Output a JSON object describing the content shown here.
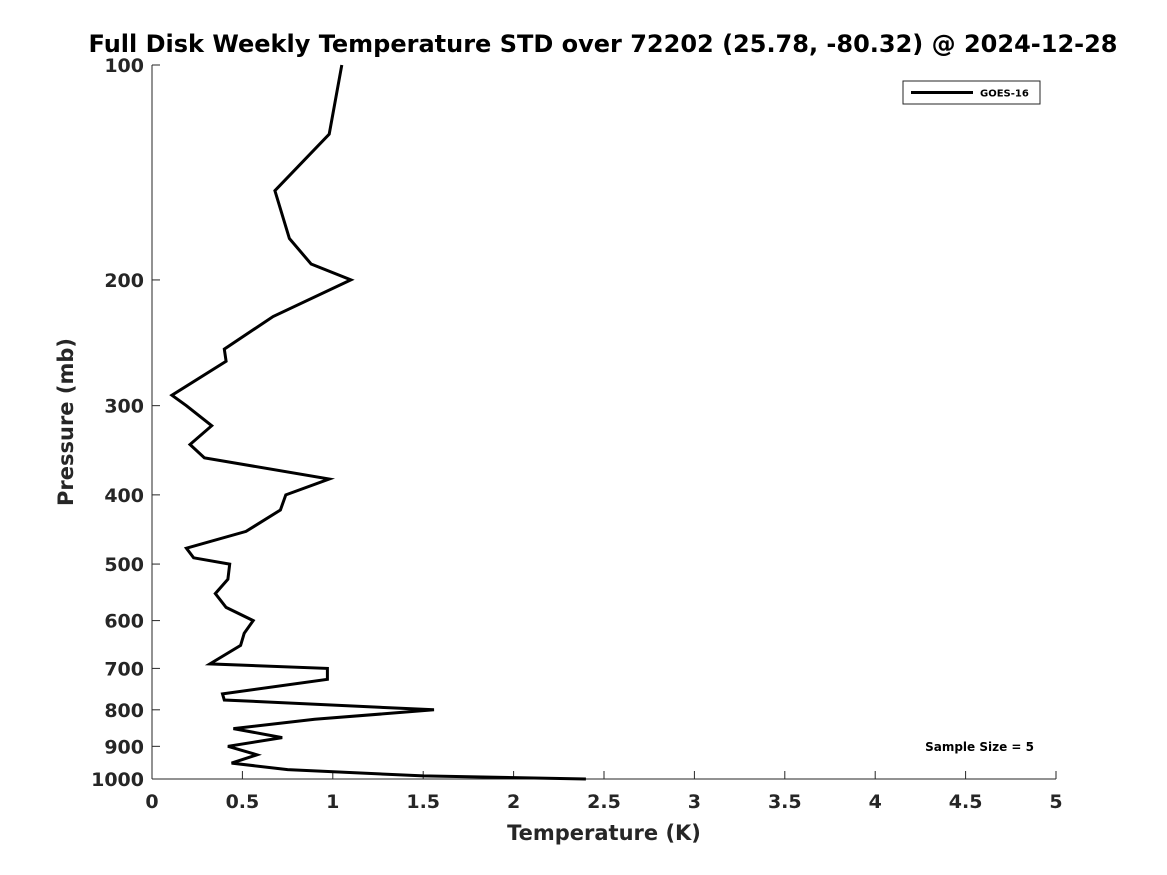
{
  "chart_data": {
    "type": "line",
    "title": "Full Disk Weekly Temperature STD over 72202 (25.78, -80.32) @ 2024-12-28",
    "xlabel": "Temperature (K)",
    "ylabel": "Pressure (mb)",
    "xlim": [
      0,
      5
    ],
    "ylim": [
      100,
      1000
    ],
    "yscale": "log",
    "yreversed": true,
    "xticks": [
      0,
      0.5,
      1,
      1.5,
      2,
      2.5,
      3,
      3.5,
      4,
      4.5,
      5
    ],
    "xtick_labels": [
      "0",
      "0.5",
      "1",
      "1.5",
      "2",
      "2.5",
      "3",
      "3.5",
      "4",
      "4.5",
      "5"
    ],
    "yticks": [
      100,
      200,
      300,
      400,
      500,
      600,
      700,
      800,
      900,
      1000
    ],
    "ytick_labels": [
      "100",
      "200",
      "300",
      "400",
      "500",
      "600",
      "700",
      "800",
      "900",
      "1000"
    ],
    "grid": false,
    "legend_position": "top-right",
    "series": [
      {
        "name": "GOES-16",
        "color": "#000000",
        "points": [
          [
            1.05,
            100
          ],
          [
            0.98,
            125
          ],
          [
            0.68,
            150
          ],
          [
            0.76,
            175
          ],
          [
            0.88,
            190
          ],
          [
            1.1,
            200
          ],
          [
            0.67,
            225
          ],
          [
            0.4,
            250
          ],
          [
            0.41,
            260
          ],
          [
            0.11,
            290
          ],
          [
            0.19,
            300
          ],
          [
            0.33,
            320
          ],
          [
            0.21,
            340
          ],
          [
            0.29,
            355
          ],
          [
            0.98,
            380
          ],
          [
            0.74,
            400
          ],
          [
            0.71,
            420
          ],
          [
            0.52,
            450
          ],
          [
            0.19,
            475
          ],
          [
            0.23,
            490
          ],
          [
            0.43,
            500
          ],
          [
            0.42,
            525
          ],
          [
            0.35,
            550
          ],
          [
            0.41,
            575
          ],
          [
            0.56,
            600
          ],
          [
            0.51,
            625
          ],
          [
            0.49,
            650
          ],
          [
            0.32,
            690
          ],
          [
            0.97,
            700
          ],
          [
            0.97,
            725
          ],
          [
            0.39,
            760
          ],
          [
            0.4,
            775
          ],
          [
            1.56,
            800
          ],
          [
            0.9,
            825
          ],
          [
            0.45,
            850
          ],
          [
            0.72,
            875
          ],
          [
            0.42,
            900
          ],
          [
            0.58,
            925
          ],
          [
            0.44,
            950
          ],
          [
            0.75,
            970
          ],
          [
            1.5,
            990
          ],
          [
            2.4,
            1000
          ]
        ]
      }
    ],
    "legend": [
      "GOES-16"
    ],
    "annotation": "Sample Size = 5"
  }
}
